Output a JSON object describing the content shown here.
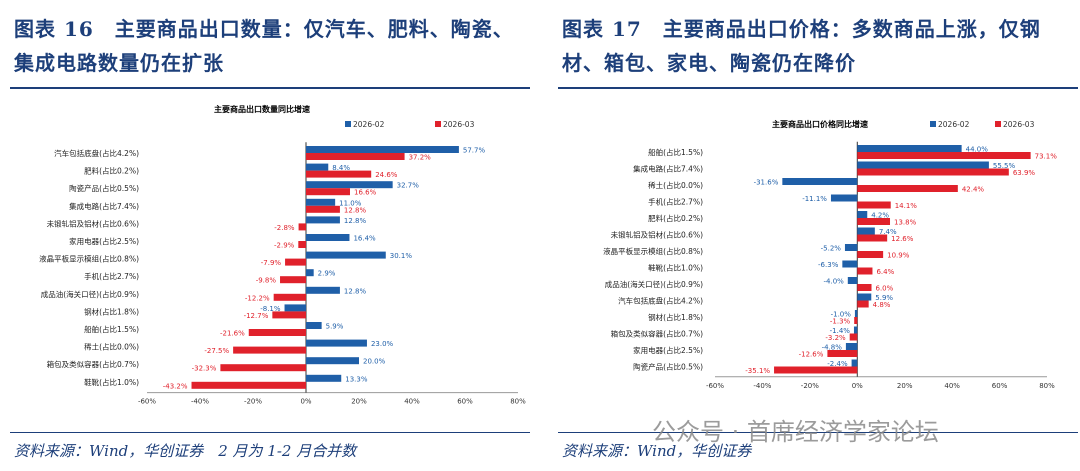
{
  "left": {
    "header": "图表 16　主要商品出口数量：仅汽车、肥料、陶瓷、集成电路数量仍在扩张",
    "header_lines": [
      "图表 16　主要商品出口数量：仅汽车、肥料、陶瓷、",
      "集成电路数量仍在扩张"
    ],
    "source": "资料来源：Wind，华创证券　2 月为 1-2 月合并数"
  },
  "right": {
    "header_lines": [
      "图表 17　主要商品出口价格：多数商品上涨，仅钢",
      "材、箱包、家电、陶瓷仍在降价"
    ],
    "source": "资料来源：Wind，华创证券"
  },
  "watermark": "公众号 · 首席经济学家论坛",
  "colors": {
    "s1": "#1f5fa8",
    "s2": "#e0212b",
    "text": "#1d3f7a"
  },
  "chart_data": [
    {
      "type": "bar",
      "orientation": "horizontal",
      "title": "主要商品出口数量同比增速",
      "xlim": [
        -60,
        80
      ],
      "ticks": [
        "-60%",
        "-40%",
        "-20%",
        "0%",
        "20%",
        "40%",
        "60%",
        "80%"
      ],
      "categories": [
        "汽车包括底盘(占比4.2%)",
        "肥料(占比0.2%)",
        "陶瓷产品(占比0.5%)",
        "集成电路(占比7.4%)",
        "未锻轧铝及铝材(占比0.6%)",
        "家用电器(占比2.5%)",
        "液晶平板显示模组(占比0.8%)",
        "手机(占比2.7%)",
        "成品油(海关口径)(占比0.9%)",
        "钢材(占比1.8%)",
        "船舶(占比1.5%)",
        "稀土(占比0.0%)",
        "箱包及类似容器(占比0.7%)",
        "鞋靴(占比1.0%)"
      ],
      "series": [
        {
          "name": "2026-02",
          "values": [
            57.7,
            8.4,
            32.7,
            11.0,
            12.8,
            16.4,
            30.1,
            2.9,
            12.8,
            -8.1,
            5.9,
            23.0,
            20.0,
            13.3
          ]
        },
        {
          "name": "2026-03",
          "values": [
            37.2,
            24.6,
            16.6,
            12.8,
            -2.8,
            -2.9,
            -7.9,
            -9.8,
            -12.2,
            -12.7,
            -21.6,
            -27.5,
            -32.3,
            -43.2
          ]
        }
      ]
    },
    {
      "type": "bar",
      "orientation": "horizontal",
      "title": "主要商品出口价格同比增速",
      "xlim": [
        -60,
        80
      ],
      "ticks": [
        "-60%",
        "-40%",
        "-20%",
        "0%",
        "20%",
        "40%",
        "60%",
        "80%"
      ],
      "categories": [
        "船舶(占比1.5%)",
        "集成电路(占比7.4%)",
        "稀土(占比0.0%)",
        "手机(占比2.7%)",
        "肥料(占比0.2%)",
        "未锻轧铝及铝材(占比0.6%)",
        "液晶平板显示模组(占比0.8%)",
        "鞋靴(占比1.0%)",
        "成品油(海关口径)(占比0.9%)",
        "汽车包括底盘(占比4.2%)",
        "钢材(占比1.8%)",
        "箱包及类似容器(占比0.7%)",
        "家用电器(占比2.5%)",
        "陶瓷产品(占比0.5%)"
      ],
      "series": [
        {
          "name": "2026-02",
          "values": [
            44.0,
            55.5,
            -31.6,
            -11.1,
            4.2,
            7.4,
            -5.2,
            -6.3,
            -4.0,
            5.9,
            -1.0,
            -1.4,
            -4.8,
            -2.4
          ]
        },
        {
          "name": "2026-03",
          "values": [
            73.1,
            63.9,
            42.4,
            14.1,
            13.8,
            12.6,
            10.9,
            6.4,
            6.0,
            4.8,
            -1.3,
            -3.2,
            -12.6,
            -35.1
          ]
        }
      ]
    }
  ]
}
